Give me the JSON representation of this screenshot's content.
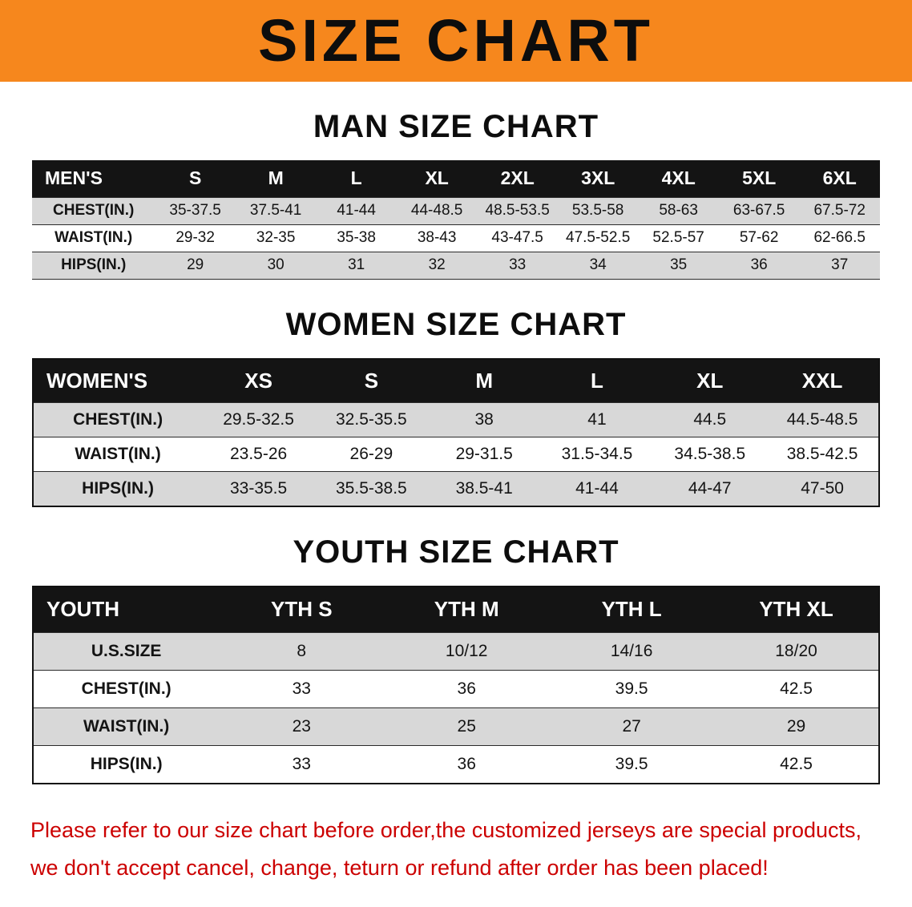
{
  "banner": {
    "title": "SIZE CHART"
  },
  "colors": {
    "banner_bg": "#f6871d",
    "header_row_bg": "#141414",
    "stripe_row_bg": "#d8d8d8",
    "disclaimer_text": "#cc0000"
  },
  "sections": [
    {
      "heading": "MAN SIZE CHART",
      "table": {
        "header": [
          "MEN'S",
          "S",
          "M",
          "L",
          "XL",
          "2XL",
          "3XL",
          "4XL",
          "5XL",
          "6XL"
        ],
        "rows": [
          [
            "CHEST(IN.)",
            "35-37.5",
            "37.5-41",
            "41-44",
            "44-48.5",
            "48.5-53.5",
            "53.5-58",
            "58-63",
            "63-67.5",
            "67.5-72"
          ],
          [
            "WAIST(IN.)",
            "29-32",
            "32-35",
            "35-38",
            "38-43",
            "43-47.5",
            "47.5-52.5",
            "52.5-57",
            "57-62",
            "62-66.5"
          ],
          [
            "HIPS(IN.)",
            "29",
            "30",
            "31",
            "32",
            "33",
            "34",
            "35",
            "36",
            "37"
          ]
        ]
      }
    },
    {
      "heading": "WOMEN SIZE CHART",
      "table": {
        "header": [
          "WOMEN'S",
          "XS",
          "S",
          "M",
          "L",
          "XL",
          "XXL"
        ],
        "rows": [
          [
            "CHEST(IN.)",
            "29.5-32.5",
            "32.5-35.5",
            "38",
            "41",
            "44.5",
            "44.5-48.5"
          ],
          [
            "WAIST(IN.)",
            "23.5-26",
            "26-29",
            "29-31.5",
            "31.5-34.5",
            "34.5-38.5",
            "38.5-42.5"
          ],
          [
            "HIPS(IN.)",
            "33-35.5",
            "35.5-38.5",
            "38.5-41",
            "41-44",
            "44-47",
            "47-50"
          ]
        ]
      }
    },
    {
      "heading": "YOUTH SIZE CHART",
      "table": {
        "header": [
          "YOUTH",
          "YTH S",
          "YTH M",
          "YTH L",
          "YTH XL"
        ],
        "rows": [
          [
            "U.S.SIZE",
            "8",
            "10/12",
            "14/16",
            "18/20"
          ],
          [
            "CHEST(IN.)",
            "33",
            "36",
            "39.5",
            "42.5"
          ],
          [
            "WAIST(IN.)",
            "23",
            "25",
            "27",
            "29"
          ],
          [
            "HIPS(IN.)",
            "33",
            "36",
            "39.5",
            "42.5"
          ]
        ]
      }
    }
  ],
  "footer": {
    "line1": "Please refer to our size chart before order,the customized jerseys are special products,",
    "line2": "we don't accept cancel, change, teturn or refund after order has been placed!"
  }
}
